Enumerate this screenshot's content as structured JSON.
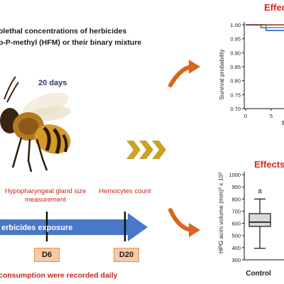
{
  "header": {
    "line1": "blethal concentrations of herbicides",
    "line2": "p-P-methyl (HFM) or their binary mixture",
    "duration": "20 days"
  },
  "timeline": {
    "hypopharyngeal_label": "Hypopharyngeal gland size measurement",
    "hemocytes_label": "Hemocytes count",
    "exposure_label": "erbicides exposure",
    "d6": "D6",
    "d20": "D20",
    "footer": "consumption were  recorded daily"
  },
  "survival_panel": {
    "title": "Effec",
    "ylabel": "Survival probability",
    "xlabel": "E",
    "yticks": [
      "1.00",
      "0.95",
      "0.90",
      "0.85",
      "0.80",
      "0.75",
      "0.70"
    ],
    "xticks": [
      "0",
      "5",
      "1"
    ]
  },
  "hpg_panel": {
    "title": "Effects",
    "ylabel": "HPG acini volume (mm)³ x 10³",
    "yticks": [
      "1000",
      "900",
      "800",
      "700",
      "600",
      "500",
      "400",
      "300"
    ],
    "group_letter": "a",
    "category": "Control"
  },
  "colors": {
    "accent_red": "#e0251b",
    "arrow_orange": "#d9661c",
    "timeline_blue": "#4472c4",
    "chevron_gold": "#c9a227"
  },
  "chart_data": [
    {
      "type": "line",
      "title": "Effec",
      "xlabel": "E",
      "ylabel": "Survival probability",
      "ylim": [
        0.7,
        1.0
      ],
      "series": [
        {
          "x": [
            0,
            2,
            3,
            4,
            5,
            6,
            7,
            8,
            9,
            10,
            12
          ],
          "values": [
            1.0,
            1.0,
            0.99,
            0.98,
            0.98,
            0.98,
            0.98,
            0.98,
            0.98,
            0.98,
            0.98
          ]
        },
        {
          "x": [
            0,
            2,
            3,
            4,
            5,
            6,
            7,
            8,
            9,
            10,
            12
          ],
          "values": [
            1.0,
            1.0,
            1.0,
            0.99,
            0.99,
            0.99,
            0.99,
            0.99,
            0.99,
            0.99,
            0.99
          ]
        },
        {
          "x": [
            0,
            2,
            3,
            4,
            5,
            6,
            7,
            8,
            9,
            10,
            12
          ],
          "values": [
            1.0,
            1.0,
            1.0,
            1.0,
            1.0,
            1.0,
            1.0,
            1.0,
            1.0,
            1.0,
            1.0
          ]
        }
      ]
    },
    {
      "type": "bar",
      "title": "Effects",
      "ylabel": "HPG acini volume (mm)³ x 10³",
      "ylim": [
        300,
        1000
      ],
      "categories": [
        "Control"
      ],
      "box": {
        "min": 395,
        "q1": 575,
        "median": 610,
        "q3": 680,
        "max": 800
      }
    }
  ]
}
